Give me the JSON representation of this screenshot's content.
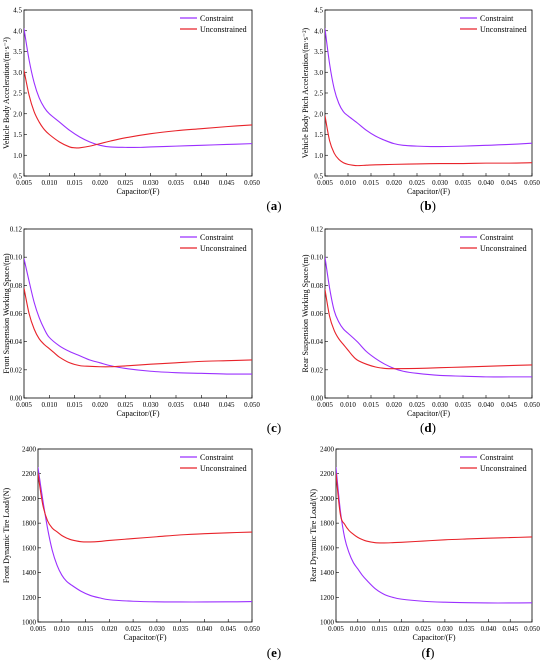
{
  "colors": {
    "constraint": "#9b30ff",
    "unconstrained": "#e8232a"
  },
  "chart_data": [
    {
      "type": "line",
      "panel_label": "a",
      "xlabel": "Capacitor/(F)",
      "ylabel": "Vehicle Body Acceleration/(m·s⁻²)",
      "xlim": [
        0.005,
        0.05
      ],
      "ylim": [
        0.5,
        4.5
      ],
      "xticks": [
        0.005,
        0.01,
        0.015,
        0.02,
        0.025,
        0.03,
        0.035,
        0.04,
        0.045,
        0.05
      ],
      "xtick_labels": [
        "0.005",
        "0.010",
        "0.015",
        "0.020",
        "0.025",
        "0.030",
        "0.035",
        "0.040",
        "0.045",
        "0.050"
      ],
      "yticks": [
        0.5,
        1.0,
        1.5,
        2.0,
        2.5,
        3.0,
        3.5,
        4.0,
        4.5
      ],
      "ytick_labels": [
        "0.5",
        "1.0",
        "1.5",
        "2.0",
        "2.5",
        "3.0",
        "3.5",
        "4.0",
        "4.5"
      ],
      "series": [
        {
          "name": "Constraint",
          "color_key": "constraint",
          "x": [
            0.005,
            0.006,
            0.007,
            0.008,
            0.009,
            0.01,
            0.012,
            0.014,
            0.016,
            0.018,
            0.02,
            0.022,
            0.025,
            0.028,
            0.03,
            0.035,
            0.04,
            0.045,
            0.05
          ],
          "y": [
            4.05,
            3.3,
            2.75,
            2.38,
            2.15,
            2.0,
            1.8,
            1.6,
            1.44,
            1.32,
            1.24,
            1.2,
            1.19,
            1.19,
            1.2,
            1.22,
            1.24,
            1.26,
            1.28
          ]
        },
        {
          "name": "Unconstrained",
          "color_key": "unconstrained",
          "x": [
            0.005,
            0.006,
            0.007,
            0.008,
            0.009,
            0.01,
            0.012,
            0.014,
            0.015,
            0.016,
            0.018,
            0.02,
            0.022,
            0.025,
            0.03,
            0.035,
            0.04,
            0.045,
            0.05
          ],
          "y": [
            3.05,
            2.45,
            2.05,
            1.8,
            1.62,
            1.5,
            1.32,
            1.2,
            1.18,
            1.18,
            1.22,
            1.28,
            1.34,
            1.42,
            1.52,
            1.59,
            1.64,
            1.69,
            1.73
          ]
        }
      ]
    },
    {
      "type": "line",
      "panel_label": "b",
      "xlabel": "Capacitor/(F)",
      "ylabel": "Vehicle Body Pitch Acceleration/(m·s⁻²)",
      "xlim": [
        0.005,
        0.05
      ],
      "ylim": [
        0.5,
        4.5
      ],
      "xticks": [
        0.005,
        0.01,
        0.015,
        0.02,
        0.025,
        0.03,
        0.035,
        0.04,
        0.045,
        0.05
      ],
      "xtick_labels": [
        "0.005",
        "0.010",
        "0.015",
        "0.020",
        "0.025",
        "0.030",
        "0.035",
        "0.040",
        "0.045",
        "0.050"
      ],
      "yticks": [
        0.5,
        1.0,
        1.5,
        2.0,
        2.5,
        3.0,
        3.5,
        4.0,
        4.5
      ],
      "ytick_labels": [
        "0.5",
        "1.0",
        "1.5",
        "2.0",
        "2.5",
        "3.0",
        "3.5",
        "4.0",
        "4.5"
      ],
      "series": [
        {
          "name": "Constraint",
          "color_key": "constraint",
          "x": [
            0.005,
            0.006,
            0.007,
            0.008,
            0.009,
            0.01,
            0.012,
            0.014,
            0.016,
            0.018,
            0.02,
            0.022,
            0.025,
            0.028,
            0.03,
            0.035,
            0.04,
            0.045,
            0.05
          ],
          "y": [
            4.05,
            3.2,
            2.6,
            2.25,
            2.05,
            1.95,
            1.78,
            1.6,
            1.46,
            1.36,
            1.28,
            1.24,
            1.22,
            1.21,
            1.21,
            1.22,
            1.24,
            1.26,
            1.29
          ]
        },
        {
          "name": "Unconstrained",
          "color_key": "unconstrained",
          "x": [
            0.005,
            0.006,
            0.007,
            0.008,
            0.009,
            0.01,
            0.011,
            0.012,
            0.014,
            0.016,
            0.02,
            0.025,
            0.03,
            0.035,
            0.04,
            0.045,
            0.05
          ],
          "y": [
            1.95,
            1.35,
            1.05,
            0.9,
            0.82,
            0.78,
            0.76,
            0.75,
            0.76,
            0.77,
            0.78,
            0.79,
            0.8,
            0.8,
            0.81,
            0.81,
            0.82
          ]
        }
      ]
    },
    {
      "type": "line",
      "panel_label": "c",
      "xlabel": "Capacitor/(F)",
      "ylabel": "Front Suspension Working Space/(m)",
      "xlim": [
        0.005,
        0.05
      ],
      "ylim": [
        0.0,
        0.12
      ],
      "xticks": [
        0.005,
        0.01,
        0.015,
        0.02,
        0.025,
        0.03,
        0.035,
        0.04,
        0.045,
        0.05
      ],
      "xtick_labels": [
        "0.005",
        "0.010",
        "0.015",
        "0.020",
        "0.025",
        "0.030",
        "0.035",
        "0.040",
        "0.045",
        "0.050"
      ],
      "yticks": [
        0.0,
        0.02,
        0.04,
        0.06,
        0.08,
        0.1,
        0.12
      ],
      "ytick_labels": [
        "0.00",
        "0.02",
        "0.04",
        "0.06",
        "0.08",
        "0.10",
        "0.12"
      ],
      "series": [
        {
          "name": "Constraint",
          "color_key": "constraint",
          "x": [
            0.005,
            0.006,
            0.007,
            0.008,
            0.009,
            0.01,
            0.012,
            0.014,
            0.016,
            0.018,
            0.02,
            0.022,
            0.025,
            0.03,
            0.035,
            0.04,
            0.045,
            0.05
          ],
          "y": [
            0.099,
            0.083,
            0.068,
            0.057,
            0.049,
            0.043,
            0.037,
            0.033,
            0.03,
            0.027,
            0.025,
            0.023,
            0.021,
            0.019,
            0.018,
            0.0175,
            0.017,
            0.017
          ]
        },
        {
          "name": "Unconstrained",
          "color_key": "unconstrained",
          "x": [
            0.005,
            0.006,
            0.007,
            0.008,
            0.009,
            0.01,
            0.011,
            0.012,
            0.014,
            0.016,
            0.018,
            0.02,
            0.022,
            0.025,
            0.03,
            0.035,
            0.04,
            0.045,
            0.05
          ],
          "y": [
            0.078,
            0.06,
            0.049,
            0.042,
            0.038,
            0.035,
            0.032,
            0.029,
            0.025,
            0.023,
            0.0225,
            0.0222,
            0.0222,
            0.0228,
            0.024,
            0.025,
            0.026,
            0.0265,
            0.027
          ]
        }
      ]
    },
    {
      "type": "line",
      "panel_label": "d",
      "xlabel": "Capacitor/(F)",
      "ylabel": "Rear Suspension Working Space/(m)",
      "xlim": [
        0.005,
        0.05
      ],
      "ylim": [
        0.0,
        0.12
      ],
      "xticks": [
        0.005,
        0.01,
        0.015,
        0.02,
        0.025,
        0.03,
        0.035,
        0.04,
        0.045,
        0.05
      ],
      "xtick_labels": [
        "0.005",
        "0.010",
        "0.015",
        "0.020",
        "0.025",
        "0.030",
        "0.035",
        "0.040",
        "0.045",
        "0.050"
      ],
      "yticks": [
        0.0,
        0.02,
        0.04,
        0.06,
        0.08,
        0.1,
        0.12
      ],
      "ytick_labels": [
        "0.00",
        "0.02",
        "0.04",
        "0.06",
        "0.08",
        "0.10",
        "0.12"
      ],
      "series": [
        {
          "name": "Constraint",
          "color_key": "constraint",
          "x": [
            0.005,
            0.006,
            0.007,
            0.008,
            0.009,
            0.01,
            0.012,
            0.014,
            0.016,
            0.018,
            0.02,
            0.022,
            0.025,
            0.03,
            0.035,
            0.04,
            0.045,
            0.05
          ],
          "y": [
            0.1,
            0.078,
            0.062,
            0.054,
            0.049,
            0.046,
            0.04,
            0.033,
            0.028,
            0.024,
            0.021,
            0.019,
            0.0175,
            0.016,
            0.0155,
            0.015,
            0.015,
            0.015
          ]
        },
        {
          "name": "Unconstrained",
          "color_key": "unconstrained",
          "x": [
            0.005,
            0.006,
            0.007,
            0.008,
            0.009,
            0.01,
            0.011,
            0.012,
            0.014,
            0.016,
            0.018,
            0.02,
            0.025,
            0.03,
            0.035,
            0.04,
            0.045,
            0.05
          ],
          "y": [
            0.077,
            0.058,
            0.048,
            0.042,
            0.038,
            0.034,
            0.03,
            0.027,
            0.024,
            0.022,
            0.021,
            0.0208,
            0.021,
            0.0215,
            0.022,
            0.0225,
            0.023,
            0.0235
          ]
        }
      ]
    },
    {
      "type": "line",
      "panel_label": "e",
      "xlabel": "Capacitor/(F)",
      "ylabel": "Front Dynamic Tire Load/(N)",
      "xlim": [
        0.005,
        0.05
      ],
      "ylim": [
        1000,
        2400
      ],
      "xticks": [
        0.005,
        0.01,
        0.015,
        0.02,
        0.025,
        0.03,
        0.035,
        0.04,
        0.045,
        0.05
      ],
      "xtick_labels": [
        "0.005",
        "0.010",
        "0.015",
        "0.020",
        "0.025",
        "0.030",
        "0.035",
        "0.040",
        "0.045",
        "0.050"
      ],
      "yticks": [
        1000,
        1200,
        1400,
        1600,
        1800,
        2000,
        2200,
        2400
      ],
      "ytick_labels": [
        "1000",
        "1200",
        "1400",
        "1600",
        "1800",
        "2000",
        "2200",
        "2400"
      ],
      "series": [
        {
          "name": "Constraint",
          "color_key": "constraint",
          "x": [
            0.005,
            0.006,
            0.007,
            0.008,
            0.009,
            0.01,
            0.011,
            0.012,
            0.014,
            0.016,
            0.018,
            0.02,
            0.025,
            0.03,
            0.035,
            0.04,
            0.045,
            0.05
          ],
          "y": [
            2250,
            1990,
            1760,
            1580,
            1460,
            1380,
            1330,
            1300,
            1250,
            1215,
            1195,
            1180,
            1168,
            1163,
            1162,
            1162,
            1163,
            1165
          ]
        },
        {
          "name": "Unconstrained",
          "color_key": "unconstrained",
          "x": [
            0.005,
            0.006,
            0.007,
            0.008,
            0.009,
            0.01,
            0.011,
            0.012,
            0.014,
            0.016,
            0.018,
            0.02,
            0.025,
            0.03,
            0.035,
            0.04,
            0.045,
            0.05
          ],
          "y": [
            2200,
            1950,
            1820,
            1760,
            1730,
            1700,
            1680,
            1665,
            1650,
            1648,
            1652,
            1660,
            1675,
            1690,
            1705,
            1715,
            1722,
            1728
          ]
        }
      ]
    },
    {
      "type": "line",
      "panel_label": "f",
      "xlabel": "Capacitor/(F)",
      "ylabel": "Rear Dynamic Tire Load/(N)",
      "xlim": [
        0.005,
        0.05
      ],
      "ylim": [
        1000,
        2400
      ],
      "xticks": [
        0.005,
        0.01,
        0.015,
        0.02,
        0.025,
        0.03,
        0.035,
        0.04,
        0.045,
        0.05
      ],
      "xtick_labels": [
        "0.005",
        "0.010",
        "0.015",
        "0.020",
        "0.025",
        "0.030",
        "0.035",
        "0.040",
        "0.045",
        "0.050"
      ],
      "yticks": [
        1000,
        1200,
        1400,
        1600,
        1800,
        2000,
        2200,
        2400
      ],
      "ytick_labels": [
        "1000",
        "1200",
        "1400",
        "1600",
        "1800",
        "2000",
        "2200",
        "2400"
      ],
      "series": [
        {
          "name": "Constraint",
          "color_key": "constraint",
          "x": [
            0.005,
            0.006,
            0.007,
            0.008,
            0.009,
            0.01,
            0.011,
            0.012,
            0.014,
            0.016,
            0.018,
            0.02,
            0.025,
            0.03,
            0.035,
            0.04,
            0.045,
            0.05
          ],
          "y": [
            2250,
            1900,
            1680,
            1560,
            1480,
            1430,
            1380,
            1340,
            1270,
            1225,
            1200,
            1185,
            1168,
            1160,
            1156,
            1154,
            1154,
            1155
          ]
        },
        {
          "name": "Unconstrained",
          "color_key": "unconstrained",
          "x": [
            0.005,
            0.006,
            0.007,
            0.008,
            0.009,
            0.01,
            0.011,
            0.012,
            0.014,
            0.016,
            0.018,
            0.02,
            0.025,
            0.03,
            0.035,
            0.04,
            0.045,
            0.05
          ],
          "y": [
            2200,
            1870,
            1790,
            1740,
            1710,
            1685,
            1668,
            1655,
            1642,
            1640,
            1642,
            1645,
            1655,
            1665,
            1672,
            1678,
            1683,
            1688
          ]
        }
      ]
    }
  ]
}
